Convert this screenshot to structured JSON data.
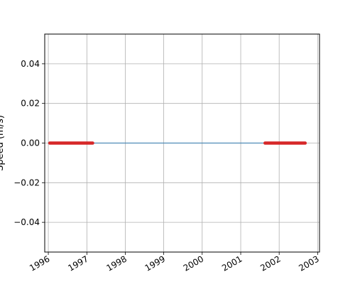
{
  "chart_data": {
    "type": "line",
    "title": "",
    "xlabel": "",
    "ylabel": "Speed (m/s)",
    "xlim": [
      "1995-11-28",
      "2003-01-19"
    ],
    "ylim": [
      -0.055,
      0.055
    ],
    "grid": true,
    "x_ticks": [
      "1996",
      "1997",
      "1998",
      "1999",
      "2000",
      "2001",
      "2002",
      "2003"
    ],
    "y_ticks": [
      "−0.04",
      "−0.02",
      "0.00",
      "0.02",
      "0.04"
    ],
    "y_tick_values": [
      -0.04,
      -0.02,
      0.0,
      0.02,
      0.04
    ],
    "series": [
      {
        "kind": "line",
        "color": "#1f77b4",
        "x": [
          "1996-01-15",
          "2002-09-05"
        ],
        "y": [
          0.0,
          0.0
        ]
      },
      {
        "kind": "marker-segment",
        "color": "#d62728",
        "x": [
          "1996-01-15",
          "1997-02-25"
        ],
        "y": [
          0.0,
          0.0
        ]
      },
      {
        "kind": "marker-segment",
        "color": "#d62728",
        "x": [
          "2001-08-20",
          "2002-09-05"
        ],
        "y": [
          0.0,
          0.0
        ]
      }
    ]
  }
}
